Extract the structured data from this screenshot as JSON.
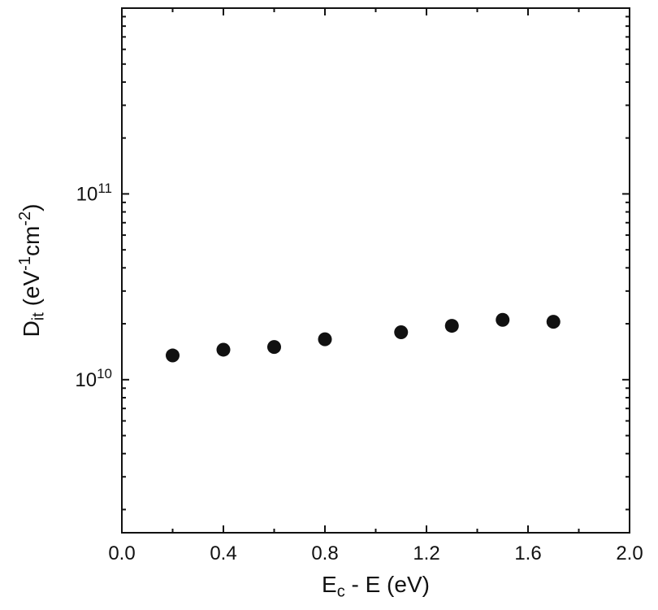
{
  "chart_data": {
    "type": "scatter",
    "title": "",
    "xlabel_parts": [
      {
        "t": "E"
      },
      {
        "t": "c",
        "sub": true
      },
      {
        "t": " - E (eV)"
      }
    ],
    "ylabel_parts": [
      {
        "t": "D"
      },
      {
        "t": "it",
        "sub": true
      },
      {
        "t": " (eV"
      },
      {
        "t": "-1",
        "sup": true
      },
      {
        "t": "cm"
      },
      {
        "t": "-2",
        "sup": true
      },
      {
        "t": ")"
      }
    ],
    "series": [
      {
        "name": "Dit",
        "x": [
          0.2,
          0.4,
          0.6,
          0.8,
          1.1,
          1.3,
          1.5,
          1.7
        ],
        "y": [
          13500000000.0,
          14500000000.0,
          15000000000.0,
          16500000000.0,
          18000000000.0,
          19500000000.0,
          21000000000.0,
          20500000000.0
        ]
      }
    ],
    "xlim": [
      0.0,
      2.0
    ],
    "ylim": [
      1500000000.0,
      1000000000000.0
    ],
    "xscale": "linear",
    "yscale": "log",
    "x_major_ticks": [
      0.0,
      0.4,
      0.8,
      1.2,
      1.6,
      2.0
    ],
    "x_major_labels": [
      "0.0",
      "0.4",
      "0.8",
      "1.2",
      "1.6",
      "2.0"
    ],
    "x_minor_ticks": [
      0.2,
      0.6,
      1.0,
      1.4,
      1.8
    ],
    "y_major_ticks": [
      10000000000.0,
      100000000000.0
    ],
    "y_major_labels": [
      {
        "base": "10",
        "exp": "10"
      },
      {
        "base": "10",
        "exp": "11"
      }
    ],
    "grid": false,
    "legend": false,
    "marker": {
      "shape": "circle",
      "color": "#111111",
      "radius": 8.5
    },
    "frame_color": "#111111",
    "background": "#ffffff"
  }
}
